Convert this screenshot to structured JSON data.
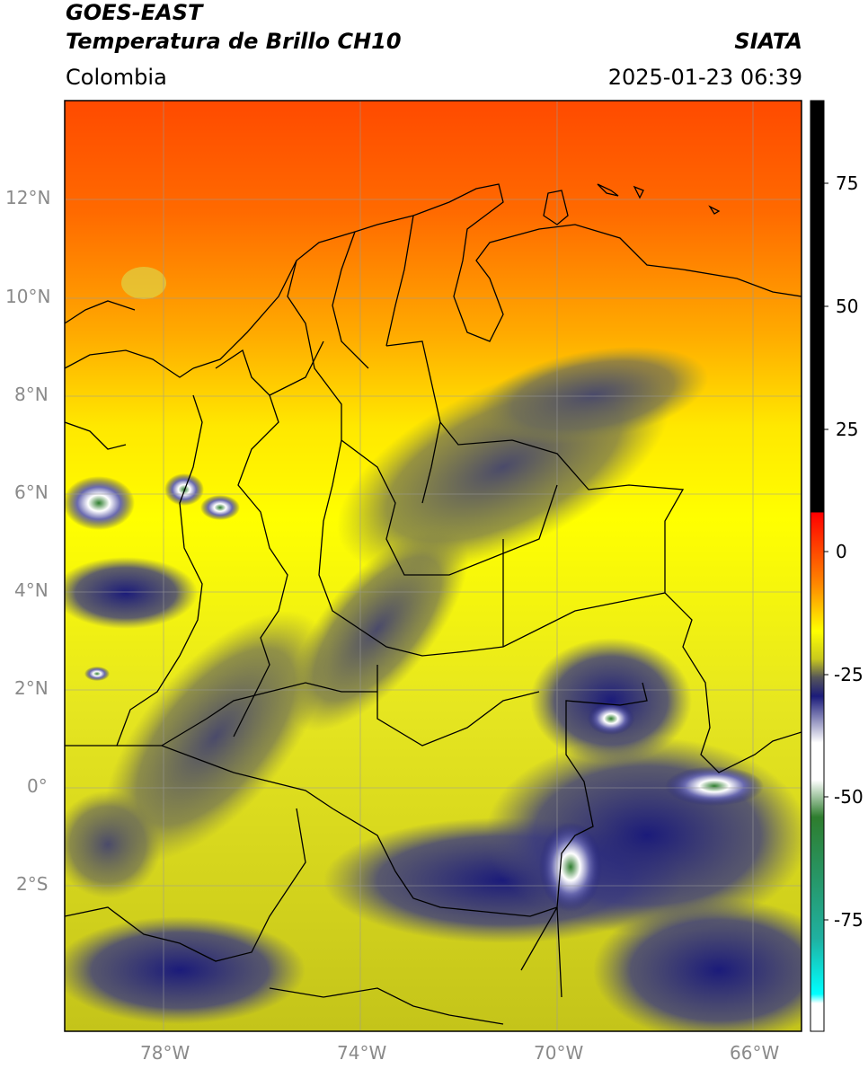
{
  "header": {
    "satellite": "GOES-EAST",
    "product": "Temperatura de Brillo CH10",
    "source": "SIATA",
    "region": "Colombia",
    "datetime": "2025-01-23 06:39"
  },
  "map": {
    "lat_labels": [
      "12°N",
      "10°N",
      "8°N",
      "6°N",
      "4°N",
      "2°N",
      "0°",
      "2°S"
    ],
    "lon_labels": [
      "78°W",
      "74°W",
      "70°W",
      "66°W"
    ],
    "extent": {
      "lon": [
        -80.0,
        -65.0
      ],
      "lat": [
        -5.0,
        14.0
      ]
    }
  },
  "colorbar": {
    "tick_labels": [
      "75",
      "50",
      "25",
      "0",
      "-25",
      "-50",
      "-75"
    ],
    "range": [
      -95,
      90
    ]
  },
  "colors": {
    "warm": "#ff4500",
    "mid": "#ffff00",
    "olive": "#c8c81e",
    "cold_blue": "#1b1b7a",
    "very_cold": "#ffffff"
  }
}
